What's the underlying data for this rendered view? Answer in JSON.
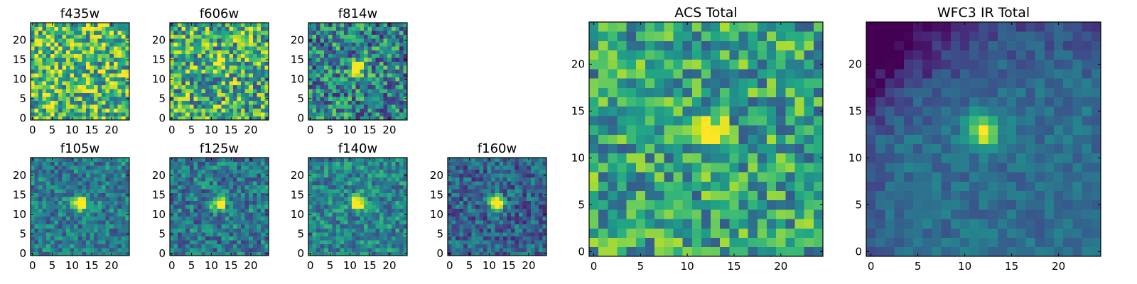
{
  "chart_data": [
    {
      "type": "heatmap",
      "title": "f435w",
      "x_ticks": [
        "0",
        "5",
        "10",
        "15",
        "20"
      ],
      "y_ticks": [
        "0",
        "5",
        "10",
        "15",
        "20"
      ],
      "xlim": [
        0,
        24
      ],
      "ylim": [
        0,
        24
      ],
      "colormap": "viridis",
      "source_at": [
        12,
        14
      ],
      "source_strength": 0.05,
      "background_level": 0.68,
      "noise_level": 0.38,
      "gradient": "none"
    },
    {
      "type": "heatmap",
      "title": "f606w",
      "x_ticks": [
        "0",
        "5",
        "10",
        "15",
        "20"
      ],
      "y_ticks": [
        "0",
        "5",
        "10",
        "15",
        "20"
      ],
      "xlim": [
        0,
        24
      ],
      "ylim": [
        0,
        24
      ],
      "colormap": "viridis",
      "source_at": [
        12,
        14
      ],
      "source_strength": 0.55,
      "background_level": 0.62,
      "noise_level": 0.38,
      "gradient": "none"
    },
    {
      "type": "heatmap",
      "title": "f814w",
      "x_ticks": [
        "0",
        "5",
        "10",
        "15",
        "20"
      ],
      "y_ticks": [
        "0",
        "5",
        "10",
        "15",
        "20"
      ],
      "xlim": [
        0,
        24
      ],
      "ylim": [
        0,
        24
      ],
      "colormap": "viridis",
      "source_at": [
        12,
        13
      ],
      "source_strength": 0.85,
      "background_level": 0.45,
      "noise_level": 0.35,
      "gradient": "none"
    },
    {
      "type": "heatmap",
      "title": "f105w",
      "x_ticks": [
        "0",
        "5",
        "10",
        "15",
        "20"
      ],
      "y_ticks": [
        "0",
        "5",
        "10",
        "15",
        "20"
      ],
      "xlim": [
        0,
        24
      ],
      "ylim": [
        0,
        24
      ],
      "colormap": "viridis",
      "source_at": [
        12,
        13
      ],
      "source_strength": 0.75,
      "background_level": 0.42,
      "noise_level": 0.22,
      "gradient": "none"
    },
    {
      "type": "heatmap",
      "title": "f125w",
      "x_ticks": [
        "0",
        "5",
        "10",
        "15",
        "20"
      ],
      "y_ticks": [
        "0",
        "5",
        "10",
        "15",
        "20"
      ],
      "xlim": [
        0,
        24
      ],
      "ylim": [
        0,
        24
      ],
      "colormap": "viridis",
      "source_at": [
        12,
        13
      ],
      "source_strength": 0.75,
      "background_level": 0.4,
      "noise_level": 0.24,
      "gradient": "none"
    },
    {
      "type": "heatmap",
      "title": "f140w",
      "x_ticks": [
        "0",
        "5",
        "10",
        "15",
        "20"
      ],
      "y_ticks": [
        "0",
        "5",
        "10",
        "15",
        "20"
      ],
      "xlim": [
        0,
        24
      ],
      "ylim": [
        0,
        24
      ],
      "colormap": "viridis",
      "source_at": [
        12,
        13
      ],
      "source_strength": 0.75,
      "background_level": 0.45,
      "noise_level": 0.22,
      "gradient": "none"
    },
    {
      "type": "heatmap",
      "title": "f160w",
      "x_ticks": [
        "0",
        "5",
        "10",
        "15",
        "20"
      ],
      "y_ticks": [
        "0",
        "5",
        "10",
        "15",
        "20"
      ],
      "xlim": [
        0,
        24
      ],
      "ylim": [
        0,
        24
      ],
      "colormap": "viridis",
      "source_at": [
        12,
        13
      ],
      "source_strength": 0.85,
      "background_level": 0.32,
      "noise_level": 0.22,
      "gradient": "none"
    },
    {
      "type": "heatmap",
      "title": "ACS Total",
      "x_ticks": [
        "0",
        "5",
        "10",
        "15",
        "20"
      ],
      "y_ticks": [
        "0",
        "5",
        "10",
        "15",
        "20"
      ],
      "xlim": [
        0,
        24
      ],
      "ylim": [
        0,
        24
      ],
      "colormap": "viridis",
      "source_at": [
        12,
        13
      ],
      "source_strength": 0.55,
      "background_level": 0.58,
      "noise_level": 0.3,
      "gradient": "none"
    },
    {
      "type": "heatmap",
      "title": "WFC3 IR Total",
      "x_ticks": [
        "0",
        "5",
        "10",
        "15",
        "20"
      ],
      "y_ticks": [
        "0",
        "5",
        "10",
        "15",
        "20"
      ],
      "xlim": [
        0,
        24
      ],
      "ylim": [
        0,
        24
      ],
      "colormap": "viridis",
      "source_at": [
        12,
        13
      ],
      "source_strength": 0.65,
      "background_level": 0.36,
      "noise_level": 0.1,
      "gradient": "top-left-dark"
    }
  ]
}
